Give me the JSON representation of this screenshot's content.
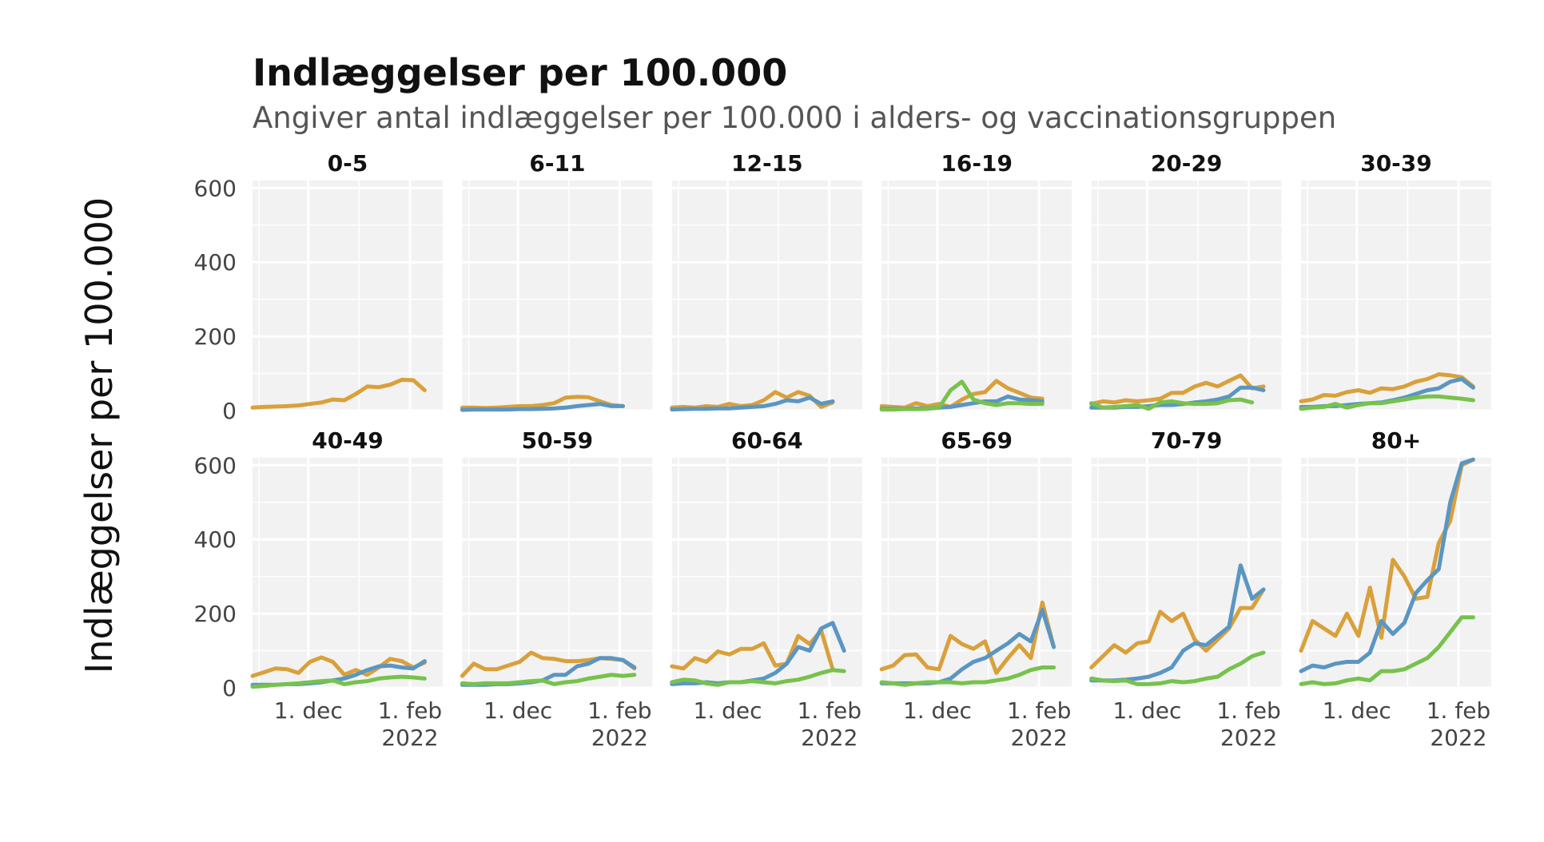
{
  "title": "Indlæggelser per 100.000",
  "subtitle": "Angiver antal indlæggelser per 100.000 i alders- og vaccinationsgruppen",
  "colors": {
    "orange": "#D9A03B",
    "blue": "#5B96C2",
    "green": "#77C24D",
    "panel_bg": "#F2F2F2",
    "grid": "#FFFFFF"
  },
  "chart_data": {
    "type": "line",
    "ylabel": "Indlæggelser per 100.000",
    "xlabel": "",
    "ylim": [
      0,
      620
    ],
    "xlim": [
      "2021-10-28",
      "2022-02-21"
    ],
    "y_ticks": [
      {
        "value": 0,
        "label": "0"
      },
      {
        "value": 200,
        "label": "200"
      },
      {
        "value": 400,
        "label": "400"
      },
      {
        "value": 600,
        "label": "600"
      }
    ],
    "x_ticks": [
      {
        "date": "2021-12-01",
        "label": "1. dec",
        "label2": ""
      },
      {
        "date": "2022-02-01",
        "label": "1. feb",
        "label2": "2022"
      }
    ],
    "grid": true,
    "x": [
      "2021-10-28",
      "2021-11-04",
      "2021-11-11",
      "2021-11-18",
      "2021-11-25",
      "2021-12-02",
      "2021-12-09",
      "2021-12-16",
      "2021-12-23",
      "2021-12-30",
      "2022-01-06",
      "2022-01-13",
      "2022-01-20",
      "2022-01-27",
      "2022-02-03",
      "2022-02-10",
      "2022-02-17"
    ],
    "facets": [
      {
        "label": "0-5",
        "series": [
          {
            "color": "orange",
            "values": [
              8,
              10,
              11,
              12,
              14,
              18,
              22,
              30,
              28,
              45,
              65,
              63,
              70,
              83,
              82,
              55,
              null
            ]
          }
        ]
      },
      {
        "label": "6-11",
        "series": [
          {
            "color": "orange",
            "values": [
              8,
              8,
              7,
              8,
              10,
              12,
              12,
              15,
              20,
              35,
              37,
              36,
              25,
              15,
              12,
              null,
              null
            ]
          },
          {
            "color": "blue",
            "values": [
              2,
              3,
              3,
              3,
              3,
              4,
              4,
              5,
              6,
              8,
              12,
              15,
              18,
              12,
              12,
              null,
              null
            ]
          }
        ]
      },
      {
        "label": "12-15",
        "series": [
          {
            "color": "orange",
            "values": [
              8,
              10,
              8,
              12,
              10,
              18,
              12,
              15,
              28,
              50,
              35,
              50,
              40,
              10,
              22,
              null,
              null
            ]
          },
          {
            "color": "blue",
            "values": [
              3,
              4,
              5,
              5,
              6,
              6,
              8,
              10,
              12,
              18,
              28,
              25,
              35,
              18,
              25,
              null,
              null
            ]
          }
        ]
      },
      {
        "label": "16-19",
        "series": [
          {
            "color": "orange",
            "values": [
              12,
              10,
              8,
              20,
              12,
              18,
              10,
              30,
              45,
              50,
              80,
              60,
              48,
              35,
              32,
              null,
              null
            ]
          },
          {
            "color": "blue",
            "values": [
              5,
              5,
              5,
              6,
              6,
              8,
              10,
              15,
              20,
              25,
              25,
              38,
              30,
              28,
              25,
              null,
              null
            ]
          },
          {
            "color": "green",
            "values": [
              3,
              3,
              4,
              4,
              5,
              8,
              55,
              78,
              30,
              20,
              15,
              20,
              20,
              18,
              18,
              null,
              null
            ]
          }
        ]
      },
      {
        "label": "20-29",
        "series": [
          {
            "color": "orange",
            "values": [
              18,
              25,
              22,
              28,
              25,
              28,
              32,
              48,
              48,
              65,
              75,
              65,
              80,
              95,
              60,
              65,
              null
            ]
          },
          {
            "color": "blue",
            "values": [
              8,
              8,
              8,
              10,
              10,
              12,
              15,
              15,
              18,
              22,
              25,
              30,
              38,
              62,
              62,
              55,
              null
            ]
          },
          {
            "color": "green",
            "values": [
              20,
              8,
              10,
              12,
              15,
              5,
              22,
              25,
              20,
              18,
              18,
              20,
              28,
              30,
              22,
              null,
              null
            ]
          }
        ]
      },
      {
        "label": "30-39",
        "series": [
          {
            "color": "orange",
            "values": [
              25,
              30,
              42,
              40,
              50,
              55,
              48,
              60,
              58,
              65,
              78,
              85,
              98,
              95,
              90,
              65,
              null
            ]
          },
          {
            "color": "blue",
            "values": [
              10,
              10,
              12,
              12,
              15,
              18,
              20,
              22,
              28,
              35,
              45,
              55,
              60,
              78,
              85,
              62,
              null
            ]
          },
          {
            "color": "green",
            "values": [
              5,
              8,
              10,
              18,
              8,
              15,
              20,
              20,
              25,
              30,
              35,
              38,
              38,
              35,
              32,
              28,
              null
            ]
          }
        ]
      },
      {
        "label": "40-49",
        "series": [
          {
            "color": "orange",
            "values": [
              32,
              42,
              52,
              50,
              40,
              70,
              82,
              70,
              35,
              48,
              35,
              55,
              78,
              72,
              55,
              68,
              null
            ]
          },
          {
            "color": "blue",
            "values": [
              8,
              8,
              8,
              10,
              10,
              12,
              15,
              20,
              25,
              35,
              48,
              58,
              60,
              55,
              52,
              72,
              null
            ]
          },
          {
            "color": "green",
            "values": [
              3,
              5,
              8,
              10,
              12,
              15,
              18,
              20,
              10,
              15,
              18,
              25,
              28,
              30,
              28,
              25,
              null
            ]
          }
        ]
      },
      {
        "label": "50-59",
        "series": [
          {
            "color": "orange",
            "values": [
              32,
              65,
              50,
              50,
              60,
              70,
              95,
              80,
              78,
              72,
              72,
              75,
              80,
              78,
              75,
              52,
              null
            ]
          },
          {
            "color": "blue",
            "values": [
              8,
              8,
              8,
              10,
              10,
              12,
              15,
              20,
              35,
              35,
              58,
              65,
              80,
              80,
              75,
              55,
              null
            ]
          },
          {
            "color": "green",
            "values": [
              12,
              10,
              12,
              12,
              12,
              15,
              18,
              20,
              10,
              15,
              18,
              25,
              30,
              35,
              32,
              35,
              null
            ]
          }
        ]
      },
      {
        "label": "60-64",
        "series": [
          {
            "color": "orange",
            "values": [
              58,
              52,
              80,
              70,
              98,
              90,
              105,
              105,
              120,
              60,
              65,
              140,
              118,
              155,
              50,
              null,
              null
            ]
          },
          {
            "color": "blue",
            "values": [
              10,
              12,
              12,
              15,
              12,
              15,
              15,
              20,
              25,
              40,
              65,
              110,
              100,
              160,
              175,
              100,
              null
            ]
          },
          {
            "color": "green",
            "values": [
              15,
              22,
              20,
              12,
              8,
              15,
              15,
              18,
              15,
              12,
              18,
              22,
              30,
              40,
              48,
              45,
              null
            ]
          }
        ]
      },
      {
        "label": "65-69",
        "series": [
          {
            "color": "orange",
            "values": [
              50,
              60,
              88,
              90,
              55,
              50,
              140,
              118,
              105,
              125,
              40,
              80,
              115,
              80,
              230,
              110,
              null
            ]
          },
          {
            "color": "blue",
            "values": [
              12,
              12,
              12,
              12,
              12,
              15,
              25,
              50,
              70,
              80,
              100,
              120,
              145,
              125,
              210,
              110,
              null
            ]
          },
          {
            "color": "green",
            "values": [
              15,
              12,
              8,
              12,
              15,
              15,
              15,
              12,
              15,
              15,
              20,
              25,
              35,
              48,
              55,
              55,
              null
            ]
          }
        ]
      },
      {
        "label": "70-79",
        "series": [
          {
            "color": "orange",
            "values": [
              55,
              85,
              115,
              95,
              120,
              125,
              205,
              180,
              200,
              130,
              100,
              130,
              160,
              215,
              215,
              265,
              null
            ]
          },
          {
            "color": "blue",
            "values": [
              20,
              20,
              20,
              22,
              25,
              30,
              40,
              55,
              100,
              120,
              115,
              140,
              165,
              330,
              240,
              265,
              null
            ]
          },
          {
            "color": "green",
            "values": [
              25,
              20,
              18,
              20,
              10,
              10,
              12,
              18,
              15,
              18,
              25,
              30,
              50,
              65,
              85,
              95,
              null
            ]
          }
        ]
      },
      {
        "label": "80+",
        "series": [
          {
            "color": "orange",
            "values": [
              100,
              180,
              160,
              140,
              200,
              140,
              270,
              135,
              345,
              300,
              240,
              245,
              390,
              450,
              600,
              615,
              null
            ]
          },
          {
            "color": "blue",
            "values": [
              45,
              60,
              55,
              65,
              70,
              70,
              95,
              180,
              145,
              175,
              255,
              290,
              320,
              500,
              605,
              615,
              null
            ]
          },
          {
            "color": "green",
            "values": [
              10,
              15,
              10,
              12,
              20,
              25,
              20,
              45,
              45,
              50,
              65,
              80,
              110,
              150,
              190,
              190,
              null
            ]
          }
        ]
      }
    ]
  }
}
